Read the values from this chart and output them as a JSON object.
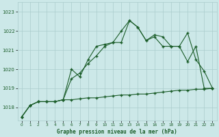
{
  "title": "Graphe pression niveau de la mer (hPa)",
  "bg_color": "#cce8e8",
  "grid_color": "#aacccc",
  "line_color": "#1a5c28",
  "x_labels": [
    "0",
    "1",
    "2",
    "3",
    "4",
    "5",
    "6",
    "7",
    "8",
    "9",
    "10",
    "11",
    "12",
    "13",
    "14",
    "15",
    "16",
    "17",
    "18",
    "19",
    "20",
    "21",
    "22",
    "23"
  ],
  "ylim": [
    1017.3,
    1023.5
  ],
  "yticks": [
    1018,
    1019,
    1020,
    1021,
    1022,
    1023
  ],
  "series1": [
    1017.5,
    1018.1,
    1018.3,
    1018.3,
    1018.3,
    1018.4,
    1019.5,
    1019.8,
    1020.3,
    1020.7,
    1021.2,
    1021.4,
    1021.4,
    1022.55,
    1022.2,
    1021.5,
    1021.8,
    1021.7,
    1021.2,
    1021.2,
    1021.9,
    1020.5,
    1019.9,
    1019.0
  ],
  "series2": [
    1017.5,
    1018.1,
    1018.3,
    1018.3,
    1018.3,
    1018.4,
    1020.0,
    1019.6,
    1020.5,
    1021.2,
    1021.3,
    1021.4,
    1022.0,
    1022.55,
    1022.2,
    1021.5,
    1021.7,
    1021.2,
    1021.2,
    1021.2,
    1020.4,
    1021.2,
    1019.0,
    1019.0
  ],
  "series3": [
    1017.5,
    1018.1,
    1018.3,
    1018.3,
    1018.3,
    1018.4,
    1018.4,
    1018.45,
    1018.5,
    1018.5,
    1018.55,
    1018.6,
    1018.65,
    1018.65,
    1018.7,
    1018.7,
    1018.75,
    1018.8,
    1018.85,
    1018.9,
    1018.9,
    1018.95,
    1018.95,
    1019.0
  ]
}
